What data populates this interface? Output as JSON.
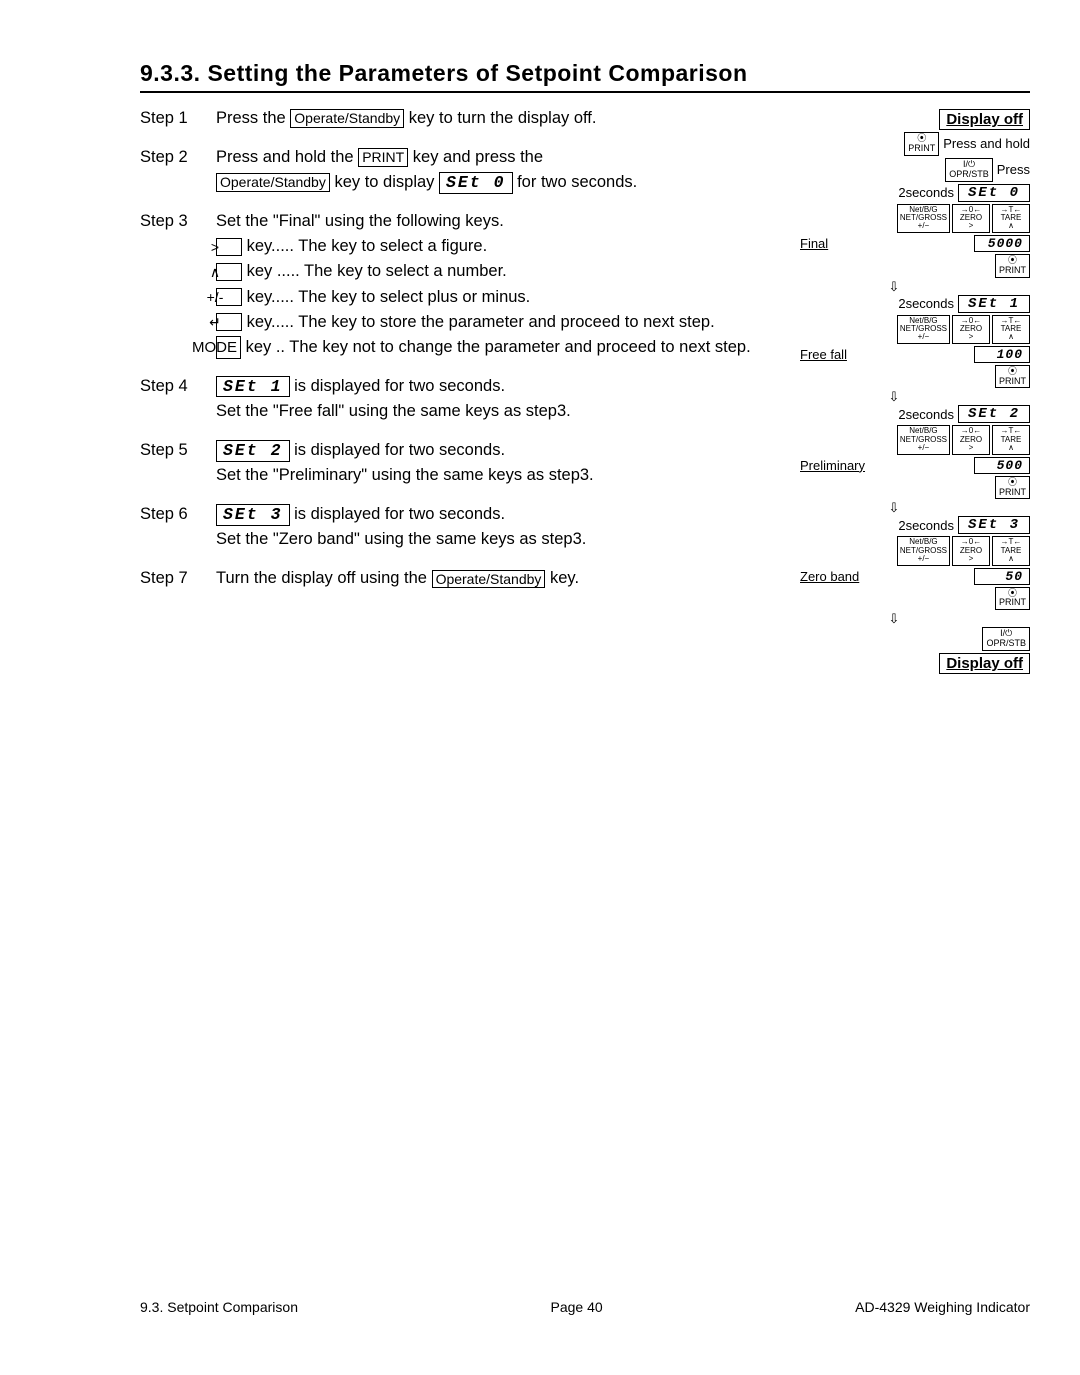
{
  "section": {
    "number": "9.3.3.",
    "title": "Setting the Parameters of Setpoint Comparison"
  },
  "steps": [
    {
      "label": "Step 1",
      "lines": [
        {
          "parts": [
            "Press the ",
            {
              "key": "Operate/Standby"
            },
            " key to turn the display off."
          ]
        }
      ]
    },
    {
      "label": "Step 2",
      "lines": [
        {
          "parts": [
            "Press and hold the ",
            {
              "key": "PRINT"
            },
            " key and press the"
          ]
        },
        {
          "parts": [
            {
              "key": "Operate/Standby"
            },
            " key to display ",
            {
              "seg": "SEt  0"
            },
            "  for two seconds."
          ]
        }
      ]
    },
    {
      "label": "Step 3",
      "lines": [
        {
          "parts": [
            "Set the \"Final\" using the following keys."
          ]
        },
        {
          "keyline": true,
          "parts": [
            {
              "small": ">"
            },
            " key..... The key to select a figure."
          ]
        },
        {
          "keyline": true,
          "parts": [
            {
              "small": "∧"
            },
            " key ..... The key to select a number."
          ]
        },
        {
          "keyline": true,
          "parts": [
            {
              "small": "+/-"
            },
            " key..... The key to select plus or minus."
          ]
        },
        {
          "keyline": true,
          "parts": [
            {
              "small": "↵"
            },
            " key..... The key to store the parameter and proceed to next step."
          ]
        },
        {
          "keyline": true,
          "parts": [
            {
              "mode": "MODE"
            },
            " key .. The key not to change the parameter and proceed to next step."
          ]
        }
      ]
    },
    {
      "label": "Step 4",
      "lines": [
        {
          "parts": [
            {
              "seg": "SEt  1"
            },
            " is displayed for two seconds."
          ]
        },
        {
          "parts": [
            "Set the \"Free fall\" using the same keys as step3."
          ]
        }
      ]
    },
    {
      "label": "Step 5",
      "lines": [
        {
          "parts": [
            {
              "seg": "SEt  2"
            },
            " is displayed for two seconds."
          ]
        },
        {
          "parts": [
            "Set the \"Preliminary\" using the same keys as step3."
          ]
        }
      ]
    },
    {
      "label": "Step 6",
      "lines": [
        {
          "parts": [
            {
              "seg": "SEt  3"
            },
            " is displayed for two seconds."
          ]
        },
        {
          "parts": [
            "Set the \"Zero band\" using the same keys as step3."
          ]
        }
      ]
    },
    {
      "label": "Step 7",
      "lines": [
        {
          "parts": [
            "Turn the display off using the ",
            {
              "key": "Operate/Standby"
            },
            " key."
          ]
        }
      ]
    }
  ],
  "diagram": {
    "display_off_top": "Display off",
    "press_hold": "Press and hold",
    "press": "Press",
    "print_icon": "⦿\nPRINT",
    "power_icon": "I/⏻\nOPR/STB",
    "two_sec": "2seconds",
    "stages": [
      {
        "seg": "SEt  0",
        "keys": [
          "Net/B/G\nNET/GROSS\n+/−",
          "→0←\nZERO\n>",
          "→T←\nTARE\n∧"
        ],
        "val": "5000",
        "label": "Final"
      },
      {
        "seg": "SEt  1",
        "keys": [
          "Net/B/G\nNET/GROSS\n+/−",
          "→0←\nZERO\n>",
          "→T←\nTARE\n∧"
        ],
        "val": "100",
        "label": "Free fall"
      },
      {
        "seg": "SEt  2",
        "keys": [
          "Net/B/G\nNET/GROSS\n+/−",
          "→0←\nZERO\n>",
          "→T←\nTARE\n∧"
        ],
        "val": "500",
        "label": "Preliminary"
      },
      {
        "seg": "SEt  3",
        "keys": [
          "Net/B/G\nNET/GROSS\n+/−",
          "→0←\nZERO\n>",
          "→T←\nTARE\n∧"
        ],
        "val": "50",
        "label": "Zero band"
      }
    ],
    "display_off_bottom": "Display off"
  },
  "footer": {
    "left": "9.3. Setpoint Comparison",
    "center": "Page 40",
    "right": "AD-4329 Weighing Indicator"
  }
}
